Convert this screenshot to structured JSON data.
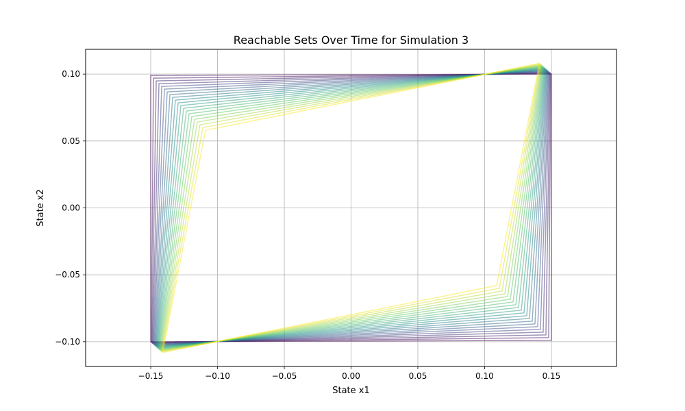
{
  "chart_data": {
    "type": "line",
    "title": "Reachable Sets Over Time for Simulation 3",
    "xlabel": "State x1",
    "ylabel": "State x2",
    "xlim": [
      -0.19875,
      0.19875
    ],
    "ylim": [
      -0.1185,
      0.1185
    ],
    "xticks": [
      -0.15,
      -0.1,
      -0.05,
      0.0,
      0.05,
      0.1,
      0.15
    ],
    "xtick_labels": [
      "−0.15",
      "−0.10",
      "−0.05",
      "0.00",
      "0.05",
      "0.10",
      "0.15"
    ],
    "yticks": [
      -0.1,
      -0.05,
      0.0,
      0.05,
      0.1
    ],
    "ytick_labels": [
      "−0.10",
      "−0.05",
      "0.00",
      "0.05",
      "0.10"
    ],
    "grid": true,
    "legend": "none",
    "colormap": "viridis",
    "line_alpha": 0.5,
    "num_sets": 21,
    "series_description": "Each reachable set is a closed quadrilateral with vertices A (near upper-left), B (upper-right), C (near lower-right), D (lower-left). Sets interpolate linearly from the first set to the last set.",
    "first_set": {
      "A": [
        -0.15,
        0.099
      ],
      "B": [
        0.15,
        0.1
      ],
      "C": [
        0.15,
        -0.099
      ],
      "D": [
        -0.15,
        -0.1
      ]
    },
    "last_set": {
      "A": [
        -0.109,
        0.058
      ],
      "B": [
        0.141,
        0.108
      ],
      "C": [
        0.109,
        -0.058
      ],
      "D": [
        -0.141,
        -0.108
      ]
    },
    "colors": [
      "#440154",
      "#3b528b",
      "#21918c",
      "#5ec962",
      "#fde725"
    ]
  }
}
